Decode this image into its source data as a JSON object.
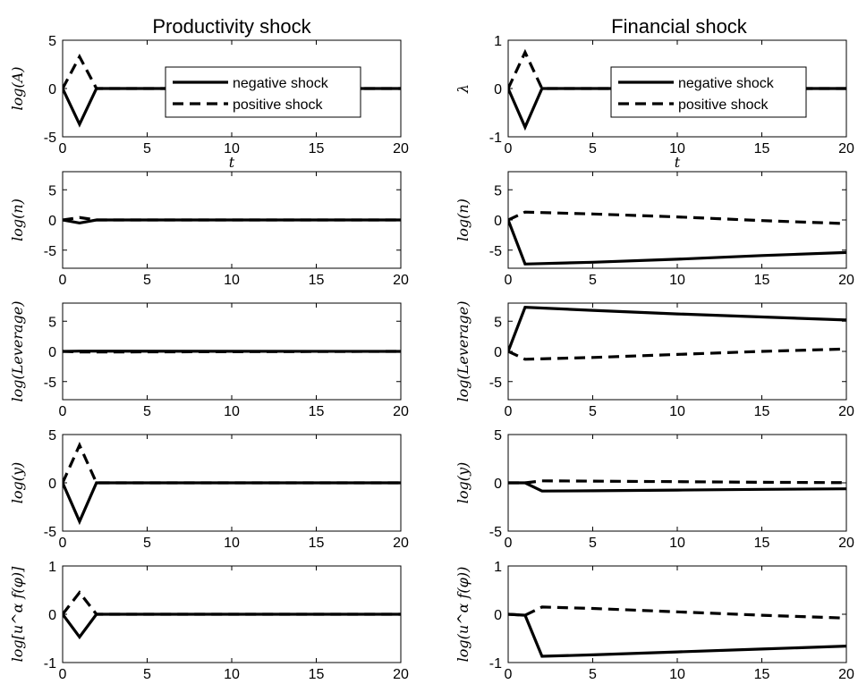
{
  "columns": [
    {
      "title": "Productivity shock"
    },
    {
      "title": "Financial shock"
    }
  ],
  "legend": {
    "entries": [
      {
        "label": "negative shock",
        "style": "solid"
      },
      {
        "label": "positive shock",
        "style": "dashed"
      }
    ]
  },
  "colors": {
    "line": "#000000",
    "background": "#ffffff"
  },
  "chart_data": [
    {
      "type": "line",
      "column": 0,
      "row": 0,
      "ylabel": "log(A)",
      "xlabel": "t",
      "xlim": [
        0,
        20
      ],
      "ylim": [
        -5,
        5
      ],
      "xticks": [
        0,
        5,
        10,
        15,
        20
      ],
      "yticks": [
        -5,
        0,
        5
      ],
      "legend": true,
      "legend_placement": "top-right",
      "series": [
        {
          "name": "negative shock",
          "style": "solid",
          "x": [
            0,
            1,
            2,
            20
          ],
          "y": [
            0,
            -3.7,
            0,
            0
          ]
        },
        {
          "name": "positive shock",
          "style": "dashed",
          "x": [
            0,
            1,
            2,
            20
          ],
          "y": [
            0,
            3.3,
            0,
            0
          ]
        }
      ]
    },
    {
      "type": "line",
      "column": 1,
      "row": 0,
      "ylabel": "λ",
      "xlabel": "t",
      "xlim": [
        0,
        20
      ],
      "ylim": [
        -1,
        1
      ],
      "xticks": [
        0,
        5,
        10,
        15,
        20
      ],
      "yticks": [
        -1,
        0,
        1
      ],
      "legend": true,
      "legend_placement": "top-right",
      "series": [
        {
          "name": "negative shock",
          "style": "solid",
          "x": [
            0,
            1,
            2,
            20
          ],
          "y": [
            0,
            -0.8,
            0,
            0
          ]
        },
        {
          "name": "positive shock",
          "style": "dashed",
          "x": [
            0,
            1,
            2,
            20
          ],
          "y": [
            0,
            0.75,
            0,
            0
          ]
        }
      ]
    },
    {
      "type": "line",
      "column": 0,
      "row": 1,
      "ylabel": "log(n)",
      "xlim": [
        0,
        20
      ],
      "ylim": [
        -8,
        8
      ],
      "xticks": [
        0,
        5,
        10,
        15,
        20
      ],
      "yticks": [
        -5,
        0,
        5
      ],
      "series": [
        {
          "name": "negative shock",
          "style": "solid",
          "x": [
            0,
            1,
            2,
            20
          ],
          "y": [
            0,
            -0.5,
            0,
            0
          ]
        },
        {
          "name": "positive shock",
          "style": "dashed",
          "x": [
            0,
            1,
            2,
            20
          ],
          "y": [
            0,
            0.4,
            0,
            0
          ]
        }
      ]
    },
    {
      "type": "line",
      "column": 1,
      "row": 1,
      "ylabel": "log(n)",
      "xlim": [
        0,
        20
      ],
      "ylim": [
        -8,
        8
      ],
      "xticks": [
        0,
        5,
        10,
        15,
        20
      ],
      "yticks": [
        -5,
        0,
        5
      ],
      "series": [
        {
          "name": "negative shock",
          "style": "solid",
          "x": [
            0,
            1,
            5,
            10,
            15,
            20
          ],
          "y": [
            0,
            -7.3,
            -7.0,
            -6.5,
            -5.9,
            -5.4
          ]
        },
        {
          "name": "positive shock",
          "style": "dashed",
          "x": [
            0,
            1,
            5,
            10,
            15,
            20
          ],
          "y": [
            0,
            1.3,
            1.0,
            0.5,
            -0.1,
            -0.6
          ]
        }
      ]
    },
    {
      "type": "line",
      "column": 0,
      "row": 2,
      "ylabel": "log(Leverage)",
      "xlim": [
        0,
        20
      ],
      "ylim": [
        -8,
        8
      ],
      "xticks": [
        0,
        5,
        10,
        15,
        20
      ],
      "yticks": [
        -5,
        0,
        5
      ],
      "series": [
        {
          "name": "negative shock",
          "style": "solid",
          "x": [
            0,
            1,
            20
          ],
          "y": [
            0,
            0.05,
            0
          ]
        },
        {
          "name": "positive shock",
          "style": "dashed",
          "x": [
            0,
            1,
            20
          ],
          "y": [
            0,
            -0.1,
            0
          ]
        }
      ]
    },
    {
      "type": "line",
      "column": 1,
      "row": 2,
      "ylabel": "log(Leverage)",
      "xlim": [
        0,
        20
      ],
      "ylim": [
        -8,
        8
      ],
      "xticks": [
        0,
        5,
        10,
        15,
        20
      ],
      "yticks": [
        -5,
        0,
        5
      ],
      "series": [
        {
          "name": "negative shock",
          "style": "solid",
          "x": [
            0,
            1,
            5,
            10,
            15,
            20
          ],
          "y": [
            0,
            7.3,
            6.8,
            6.2,
            5.7,
            5.2
          ]
        },
        {
          "name": "positive shock",
          "style": "dashed",
          "x": [
            0,
            1,
            5,
            10,
            15,
            20
          ],
          "y": [
            0,
            -1.3,
            -1.0,
            -0.5,
            0.0,
            0.4
          ]
        }
      ]
    },
    {
      "type": "line",
      "column": 0,
      "row": 3,
      "ylabel": "log(y)",
      "xlim": [
        0,
        20
      ],
      "ylim": [
        -5,
        5
      ],
      "xticks": [
        0,
        5,
        10,
        15,
        20
      ],
      "yticks": [
        -5,
        0,
        5
      ],
      "series": [
        {
          "name": "negative shock",
          "style": "solid",
          "x": [
            0,
            1,
            2,
            20
          ],
          "y": [
            0,
            -4.0,
            0,
            0
          ]
        },
        {
          "name": "positive shock",
          "style": "dashed",
          "x": [
            0,
            1,
            2,
            20
          ],
          "y": [
            0,
            3.9,
            0,
            0
          ]
        }
      ]
    },
    {
      "type": "line",
      "column": 1,
      "row": 3,
      "ylabel": "log(y)",
      "xlim": [
        0,
        20
      ],
      "ylim": [
        -5,
        5
      ],
      "xticks": [
        0,
        5,
        10,
        15,
        20
      ],
      "yticks": [
        -5,
        0,
        5
      ],
      "series": [
        {
          "name": "negative shock",
          "style": "solid",
          "x": [
            0,
            1,
            2,
            5,
            10,
            15,
            20
          ],
          "y": [
            0,
            0,
            -0.85,
            -0.82,
            -0.75,
            -0.68,
            -0.62
          ]
        },
        {
          "name": "positive shock",
          "style": "dashed",
          "x": [
            0,
            1,
            2,
            5,
            10,
            15,
            20
          ],
          "y": [
            0,
            0,
            0.2,
            0.18,
            0.12,
            0.06,
            0.02
          ]
        }
      ]
    },
    {
      "type": "line",
      "column": 0,
      "row": 4,
      "ylabel": "log[u^α f(φ)]",
      "xlim": [
        0,
        20
      ],
      "ylim": [
        -1,
        1
      ],
      "xticks": [
        0,
        5,
        10,
        15,
        20
      ],
      "yticks": [
        -1,
        0,
        1
      ],
      "series": [
        {
          "name": "negative shock",
          "style": "solid",
          "x": [
            0,
            1,
            2,
            20
          ],
          "y": [
            0,
            -0.47,
            0,
            0
          ]
        },
        {
          "name": "positive shock",
          "style": "dashed",
          "x": [
            0,
            1,
            2,
            20
          ],
          "y": [
            0,
            0.45,
            0,
            0
          ]
        }
      ]
    },
    {
      "type": "line",
      "column": 1,
      "row": 4,
      "ylabel": "log(u^α f(φ))",
      "xlim": [
        0,
        20
      ],
      "ylim": [
        -1,
        1
      ],
      "xticks": [
        0,
        5,
        10,
        15,
        20
      ],
      "yticks": [
        -1,
        0,
        1
      ],
      "series": [
        {
          "name": "negative shock",
          "style": "solid",
          "x": [
            0,
            1,
            2,
            5,
            10,
            15,
            20
          ],
          "y": [
            0,
            -0.02,
            -0.87,
            -0.84,
            -0.78,
            -0.72,
            -0.66
          ]
        },
        {
          "name": "positive shock",
          "style": "dashed",
          "x": [
            0,
            1,
            2,
            5,
            10,
            15,
            20
          ],
          "y": [
            0,
            -0.02,
            0.15,
            0.12,
            0.05,
            -0.02,
            -0.08
          ]
        }
      ]
    }
  ]
}
